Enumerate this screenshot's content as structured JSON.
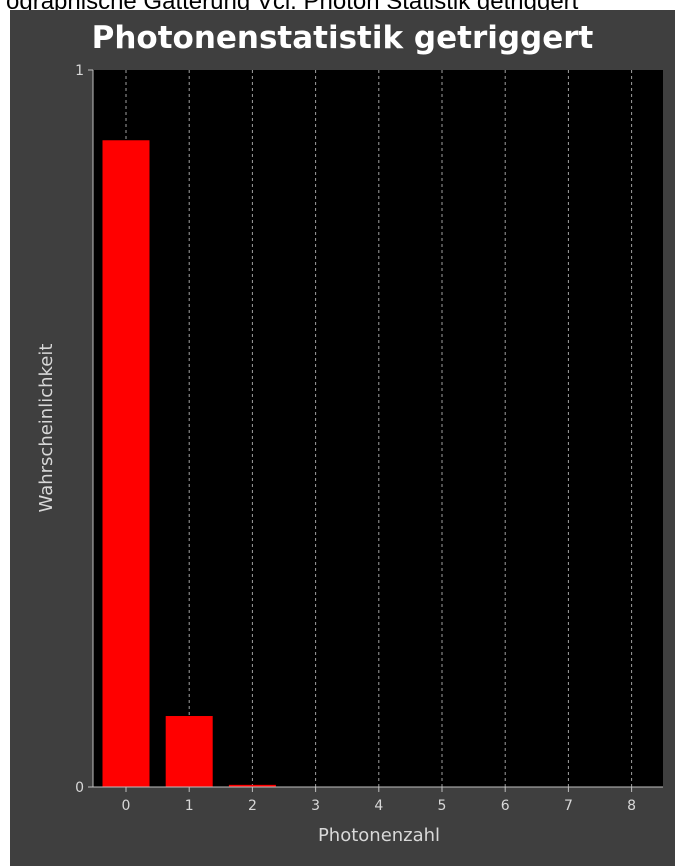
{
  "page": {
    "top_text": "ographische Gatterung Vcl. Photon Statistik getriggert"
  },
  "chart_data": {
    "type": "bar",
    "title": "Photonenstatistik getriggert",
    "xlabel": "Photonenzahl",
    "ylabel": "Wahrscheinlichkeit",
    "categories": [
      "0",
      "1",
      "2",
      "3",
      "4",
      "5",
      "6",
      "7",
      "8"
    ],
    "values": [
      0.902,
      0.099,
      0.003,
      0,
      0,
      0,
      0,
      0,
      0
    ],
    "ylim": [
      0,
      1
    ],
    "yticks": [
      "0",
      "1"
    ],
    "grid": "vertical dashed",
    "colors": {
      "bar": "#ff0000",
      "plot_background": "#000000",
      "panel_background": "#3f3f3f",
      "grid": "#a0a0a0",
      "text": "#ffffff"
    }
  }
}
